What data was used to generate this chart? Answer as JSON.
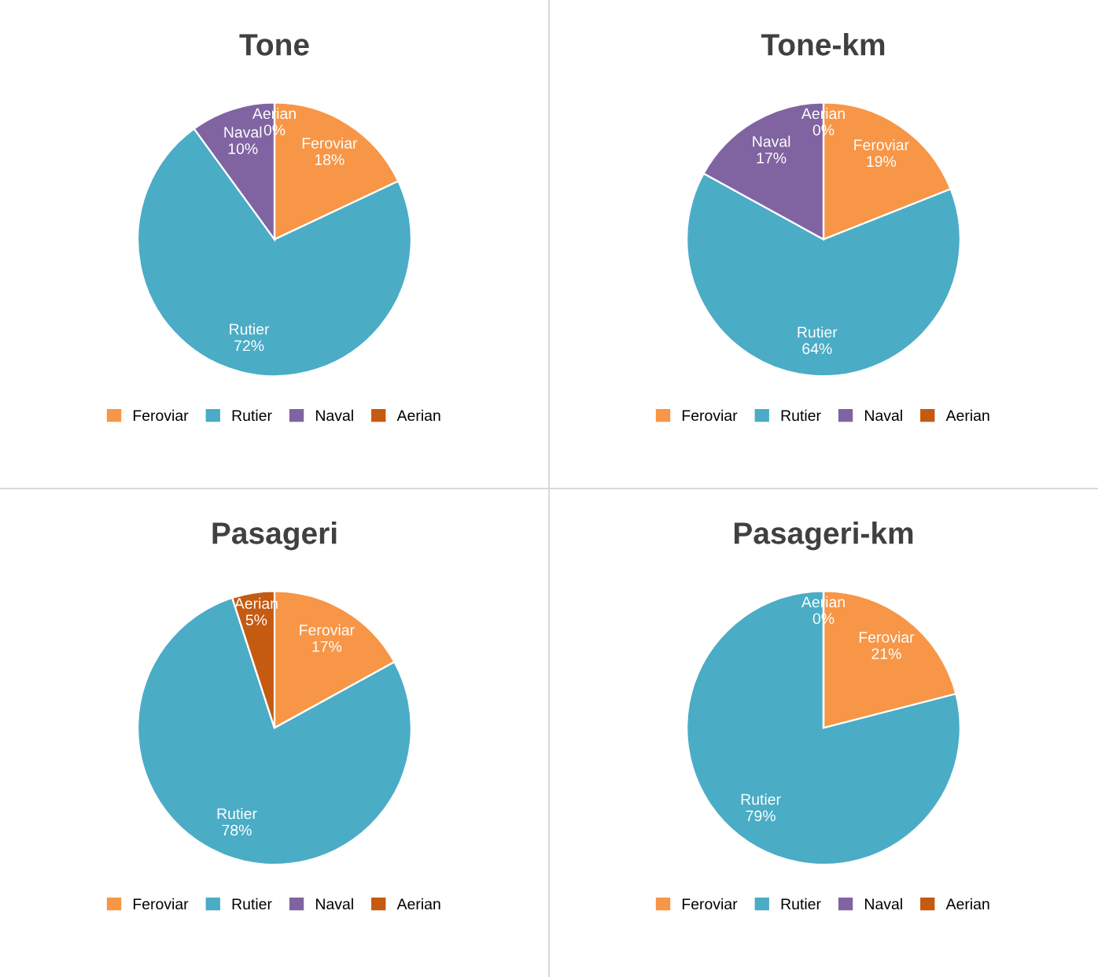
{
  "chart_data": [
    {
      "type": "pie",
      "title": "Tone",
      "categories": [
        "Feroviar",
        "Rutier",
        "Naval",
        "Aerian"
      ],
      "values": [
        18,
        72,
        10,
        0
      ],
      "value_labels": [
        "18%",
        "72%",
        "10%",
        "0%"
      ],
      "colors": [
        "#f79646",
        "#4bacc6",
        "#8064a2",
        "#c55a11"
      ],
      "legend": "bottom"
    },
    {
      "type": "pie",
      "title": "Tone-km",
      "categories": [
        "Feroviar",
        "Rutier",
        "Naval",
        "Aerian"
      ],
      "values": [
        19,
        64,
        17,
        0
      ],
      "value_labels": [
        "19%",
        "64%",
        "17%",
        "0%"
      ],
      "colors": [
        "#f79646",
        "#4bacc6",
        "#8064a2",
        "#c55a11"
      ],
      "legend": "bottom"
    },
    {
      "type": "pie",
      "title": "Pasageri",
      "categories": [
        "Feroviar",
        "Rutier",
        "Naval",
        "Aerian"
      ],
      "values": [
        17,
        78,
        0,
        5
      ],
      "value_labels": [
        "17%",
        "78%",
        null,
        "5%"
      ],
      "colors": [
        "#f79646",
        "#4bacc6",
        "#8064a2",
        "#c55a11"
      ],
      "legend": "bottom"
    },
    {
      "type": "pie",
      "title": "Pasageri-km",
      "categories": [
        "Feroviar",
        "Rutier",
        "Naval",
        "Aerian"
      ],
      "values": [
        21,
        79,
        0,
        0
      ],
      "value_labels": [
        "21%",
        "79%",
        null,
        "0%"
      ],
      "colors": [
        "#f79646",
        "#4bacc6",
        "#8064a2",
        "#c55a11"
      ],
      "legend": "bottom"
    }
  ]
}
